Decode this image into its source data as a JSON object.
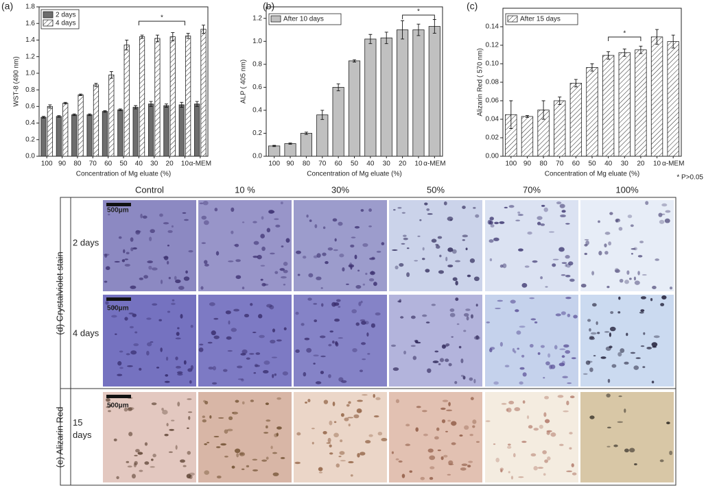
{
  "chart_data": [
    {
      "type": "bar",
      "panel_label": "(a)",
      "ylabel": "WST-8 (490 nm)",
      "xlabel": "Concentration of Mg eluate (%)",
      "categories": [
        "100",
        "90",
        "80",
        "70",
        "60",
        "50",
        "40",
        "30",
        "20",
        "10",
        "α-MEM"
      ],
      "series": [
        {
          "name": "2 days",
          "color": "#6e6e6e",
          "hatch": false,
          "values": [
            0.47,
            0.48,
            0.5,
            0.5,
            0.54,
            0.56,
            0.59,
            0.63,
            0.61,
            0.62,
            0.63
          ],
          "errors": [
            0.01,
            0.01,
            0.01,
            0.01,
            0.01,
            0.01,
            0.02,
            0.03,
            0.02,
            0.03,
            0.03
          ]
        },
        {
          "name": "4 days",
          "color": "#ffffff",
          "hatch": true,
          "values": [
            0.6,
            0.64,
            0.74,
            0.86,
            0.98,
            1.34,
            1.44,
            1.42,
            1.44,
            1.45,
            1.53
          ],
          "errors": [
            0.02,
            0.01,
            0.01,
            0.02,
            0.04,
            0.06,
            0.02,
            0.04,
            0.05,
            0.03,
            0.05
          ]
        }
      ],
      "ylim": [
        0,
        1.8
      ],
      "yticks": [
        {
          "value": 0,
          "label": "0.0"
        },
        0.2,
        0.4,
        0.6,
        0.8,
        {
          "value": 1,
          "label": "1.0"
        },
        1.2,
        1.4,
        1.6,
        1.8
      ],
      "annotation": "*"
    },
    {
      "type": "bar",
      "panel_label": "(b)",
      "ylabel": "ALP ( 405 nm)",
      "xlabel": "Concentration of Mg eluate (%)",
      "categories": [
        "100",
        "90",
        "80",
        "70",
        "60",
        "50",
        "40",
        "30",
        "20",
        "10",
        "α-MEM"
      ],
      "series": [
        {
          "name": "After 10 days",
          "color": "#c0c0c0",
          "hatch": false,
          "values": [
            0.09,
            0.11,
            0.2,
            0.36,
            0.6,
            0.83,
            1.02,
            1.03,
            1.1,
            1.1,
            1.13
          ],
          "errors": [
            0.005,
            0.005,
            0.01,
            0.04,
            0.03,
            0.01,
            0.04,
            0.05,
            0.08,
            0.05,
            0.06
          ]
        }
      ],
      "ylim": [
        0,
        1.3
      ],
      "yticks": [
        {
          "value": 0,
          "label": "0.0"
        },
        0.2,
        0.4,
        0.6,
        0.8,
        {
          "value": 1,
          "label": "1.0"
        },
        1.2
      ],
      "annotation": "*"
    },
    {
      "type": "bar",
      "panel_label": "(c)",
      "ylabel": "Alizarin Red ( 570 nm)",
      "xlabel": "Concentration of Mg eluate (%)",
      "categories": [
        "100",
        "90",
        "80",
        "70",
        "60",
        "50",
        "40",
        "30",
        "20",
        "10",
        "α-MEM"
      ],
      "series": [
        {
          "name": "After 15 days",
          "color": "#ffffff",
          "hatch": true,
          "values": [
            0.045,
            0.043,
            0.05,
            0.06,
            0.079,
            0.096,
            0.109,
            0.112,
            0.115,
            0.129,
            0.124
          ],
          "errors": [
            0.015,
            0.001,
            0.01,
            0.004,
            0.004,
            0.004,
            0.004,
            0.004,
            0.004,
            0.008,
            0.007
          ]
        }
      ],
      "ylim": [
        0,
        0.16
      ],
      "yticks": [
        {
          "value": 0,
          "label": "0.00"
        },
        0.02,
        0.04,
        0.06,
        0.08,
        {
          "value": 0.1,
          "label": "0.10"
        },
        0.12,
        0.14
      ],
      "annotation": "*",
      "note": "* P>0.05"
    }
  ],
  "image_panel": {
    "columns": [
      "Control",
      "10 %",
      "30%",
      "50%",
      "70%",
      "100%"
    ],
    "groups": [
      {
        "label": "(d) Crystalviolet stain",
        "rows": [
          "2 days",
          "4 days"
        ]
      },
      {
        "label": "(e) Alizarin Red",
        "rows": [
          "15 days"
        ]
      }
    ],
    "scale_bar": "500μm"
  }
}
